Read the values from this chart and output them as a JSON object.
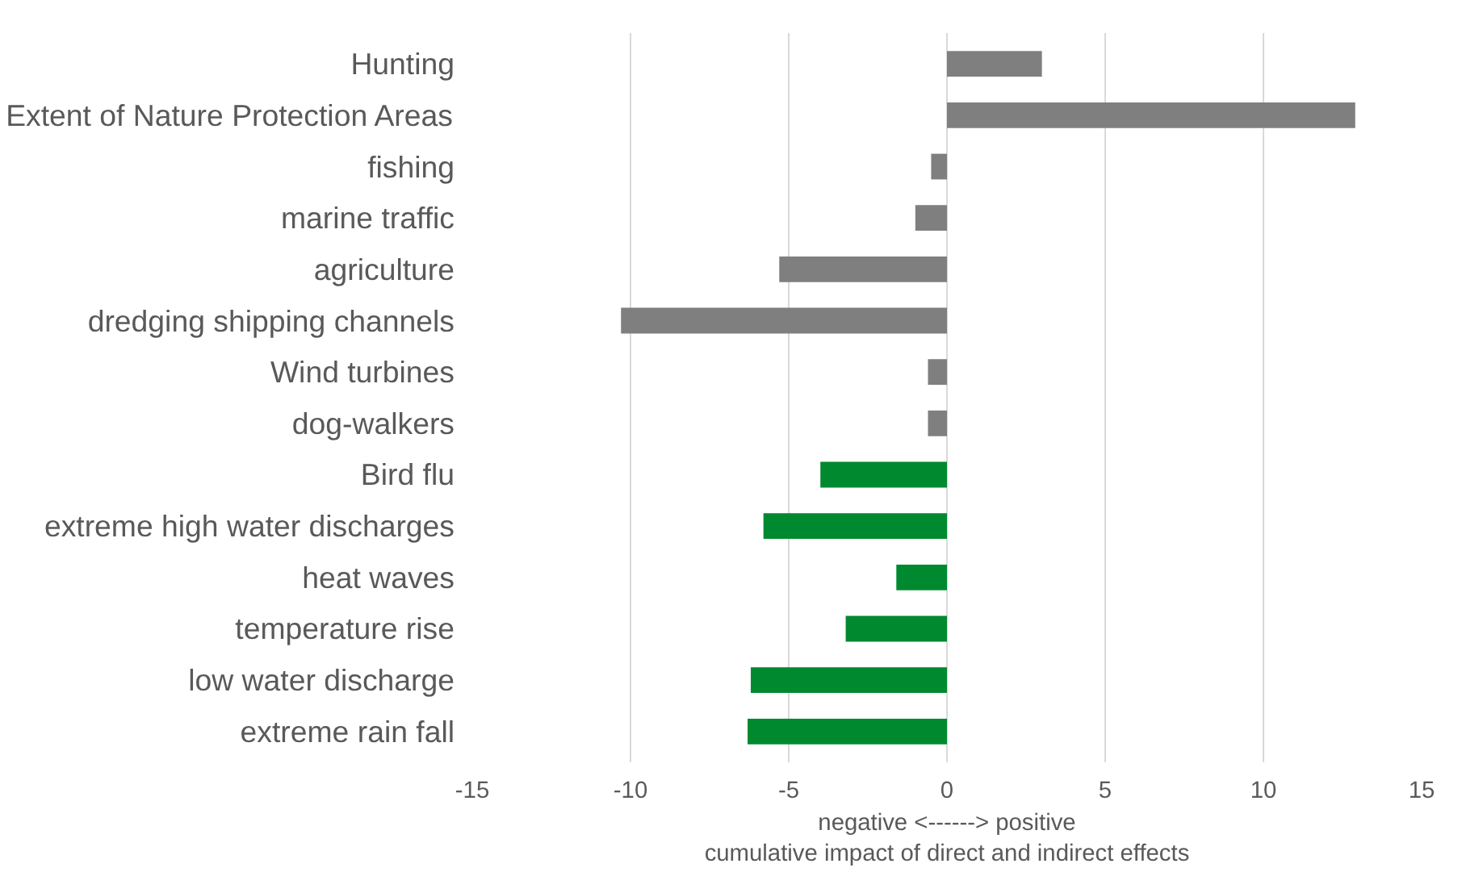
{
  "chart_data": {
    "type": "bar",
    "orientation": "horizontal",
    "xlabel": "negative <------> positive\ncumulative impact of direct and indirect effects",
    "categories": [
      "Hunting",
      "Extent of Nature Protection Areas",
      "fishing",
      "marine traffic",
      "agriculture",
      "dredging shipping channels",
      "Wind turbines",
      "dog-walkers",
      "Bird flu",
      "extreme high water discharges",
      "heat waves",
      "temperature rise",
      "low water discharge",
      "extreme rain fall"
    ],
    "values": [
      3.0,
      12.9,
      -0.5,
      -1.0,
      -5.3,
      -10.3,
      -0.6,
      -0.6,
      -4.0,
      -5.8,
      -1.6,
      -3.2,
      -6.2,
      -6.3
    ],
    "colors": [
      "#7f7f7f",
      "#7f7f7f",
      "#7f7f7f",
      "#7f7f7f",
      "#7f7f7f",
      "#7f7f7f",
      "#7f7f7f",
      "#7f7f7f",
      "#00892f",
      "#00892f",
      "#00892f",
      "#00892f",
      "#00892f",
      "#00892f"
    ],
    "xlim": [
      -15,
      15
    ],
    "xticks": [
      -15,
      -10,
      -5,
      0,
      5,
      10,
      15
    ],
    "grid": "x"
  }
}
